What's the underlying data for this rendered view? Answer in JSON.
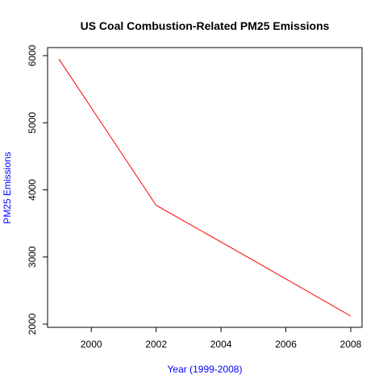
{
  "chart_data": {
    "type": "line",
    "title": "US Coal Combustion-Related PM25 Emissions",
    "xlabel": "Year (1999-2008)",
    "ylabel": "PM25 Emissions",
    "xlim": [
      1999,
      2008
    ],
    "ylim": [
      2000,
      6000
    ],
    "x_ticks": [
      2000,
      2002,
      2004,
      2006,
      2008
    ],
    "y_ticks": [
      2000,
      3000,
      4000,
      5000,
      6000
    ],
    "grid": false,
    "series": [
      {
        "x": [
          1999,
          2002,
          2005,
          2008
        ],
        "values": [
          5950,
          3770,
          2950,
          2120
        ],
        "color": "#ff0000"
      }
    ],
    "colors": {
      "axis_label": "#0000ff",
      "title": "#000000",
      "frame": "#000000"
    }
  }
}
